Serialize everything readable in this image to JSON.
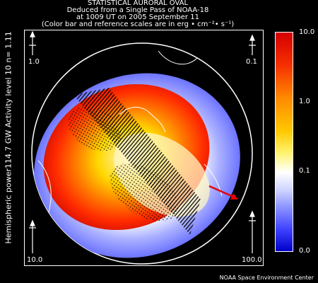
{
  "header": {
    "line1": "STATISTICAL AURORAL OVAL",
    "line2": "Deduced from a Single Pass of NOAA-18",
    "line3": "at 1009 UT on 2005 September 11",
    "line4": "(Color bar and reference scales are in erg • cm⁻²• s⁻¹)"
  },
  "side_label": "Hemispheric power114.7 GW  Activity level 10  n= 1.11",
  "reference_scales": {
    "top_left": "1.0",
    "top_right": "0.1",
    "bottom_left": "10.0",
    "bottom_right": "100.0"
  },
  "colorbar": {
    "ticks": [
      "10.0",
      "1.0",
      "0.1",
      "0.0"
    ],
    "colors": {
      "high": "#d40000",
      "mid": "#ffc800",
      "zero": "#ffffff",
      "low": "#0000c8"
    }
  },
  "footer": "NOAA Space Environment Center",
  "annotation": {
    "arrow_color": "#e60000"
  }
}
